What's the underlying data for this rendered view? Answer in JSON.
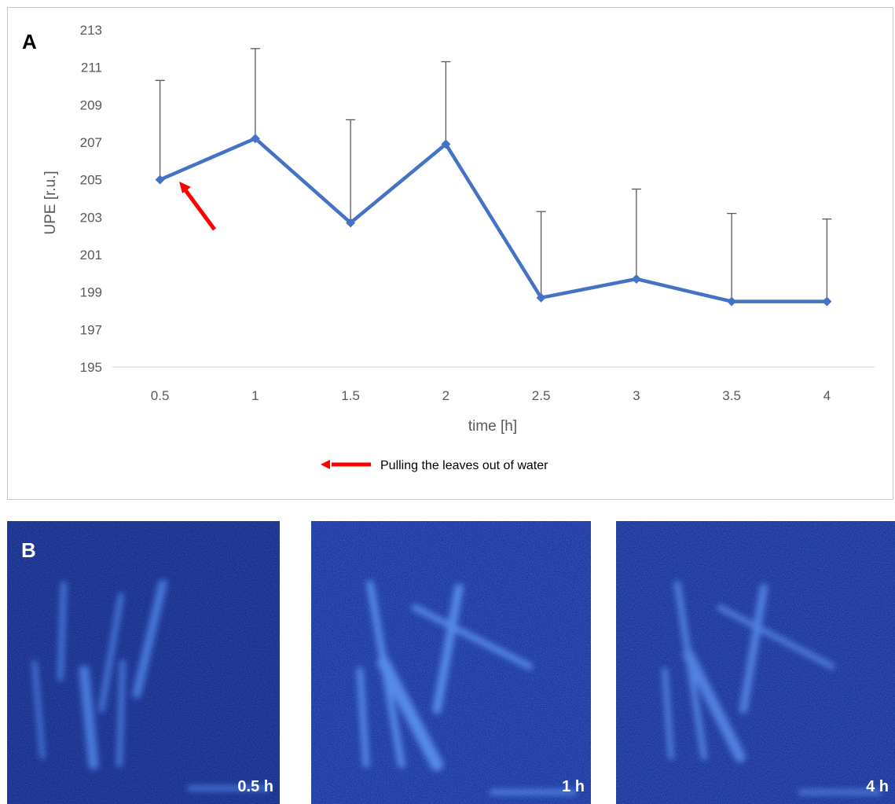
{
  "chart_data": {
    "type": "line",
    "panel_label": "A",
    "xlabel": "time [h]",
    "ylabel": "UPE [r.u.]",
    "categories": [
      "0.5",
      "1",
      "1.5",
      "2",
      "2.5",
      "3",
      "3.5",
      "4"
    ],
    "series": [
      {
        "values": [
          205.0,
          207.2,
          202.7,
          206.9,
          198.7,
          199.7,
          198.5,
          198.5
        ],
        "error_upper": [
          210.3,
          212.0,
          208.2,
          211.3,
          203.3,
          204.5,
          203.2,
          202.9
        ],
        "color": "#4472c4"
      }
    ],
    "yticks": [
      195,
      197,
      199,
      201,
      203,
      205,
      207,
      209,
      211,
      213
    ],
    "ylim": [
      195,
      213
    ],
    "grid": false,
    "legend_placement": "bottom-center",
    "annotation": {
      "legend_text": "Pulling the leaves out of water",
      "arrow_color": "#ff0000",
      "points_to_category": "0.5"
    }
  },
  "images": {
    "panel_label": "B",
    "panels": [
      {
        "label": "0.5 h"
      },
      {
        "label": "1 h"
      },
      {
        "label": "4 h"
      }
    ]
  }
}
